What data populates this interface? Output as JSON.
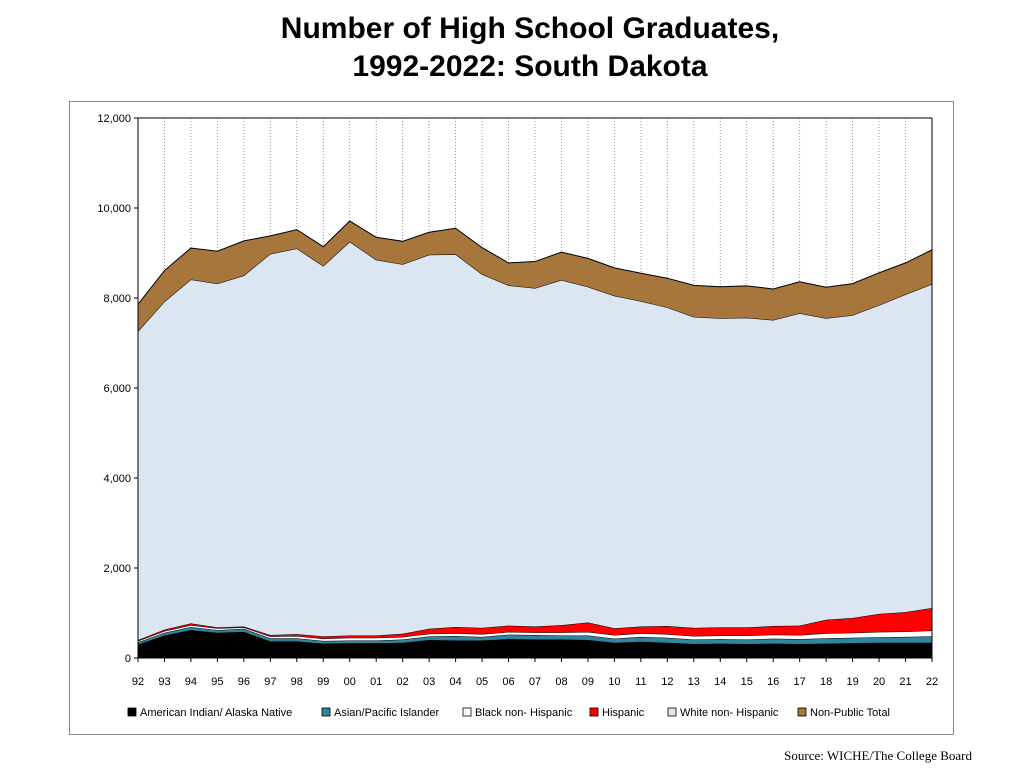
{
  "title_line1": "Number of High School Graduates,",
  "title_line2": "1992-2022:  South Dakota",
  "source": "Source: WICHE/The College Board",
  "chart_data": {
    "type": "area",
    "stacked": true,
    "title": "Number of High School Graduates, 1992-2022:  South Dakota",
    "xlabel": "",
    "ylabel": "",
    "ylim": [
      0,
      12000
    ],
    "yticks": [
      0,
      2000,
      4000,
      6000,
      8000,
      10000,
      12000
    ],
    "ytick_labels": [
      "0",
      "2,000",
      "4,000",
      "6,000",
      "8,000",
      "10,000",
      "12,000"
    ],
    "categories": [
      "92",
      "93",
      "94",
      "95",
      "96",
      "97",
      "98",
      "99",
      "00",
      "01",
      "02",
      "03",
      "04",
      "05",
      "06",
      "07",
      "08",
      "09",
      "10",
      "11",
      "12",
      "13",
      "14",
      "15",
      "16",
      "17",
      "18",
      "19",
      "20",
      "21",
      "22"
    ],
    "grid": "vertical dotted",
    "legend_position": "bottom",
    "series": [
      {
        "name": "American Indian/  Alaska Native",
        "color": "#000000",
        "values": [
          300,
          500,
          620,
          560,
          580,
          370,
          370,
          320,
          330,
          330,
          340,
          400,
          390,
          390,
          420,
          410,
          410,
          400,
          340,
          360,
          340,
          310,
          320,
          310,
          320,
          310,
          320,
          330,
          340,
          340,
          340
        ]
      },
      {
        "name": "Asian/Pacific Islander",
        "color": "#31849b",
        "values": [
          50,
          60,
          70,
          60,
          70,
          70,
          70,
          60,
          60,
          60,
          70,
          80,
          100,
          80,
          100,
          100,
          90,
          100,
          90,
          110,
          110,
          100,
          100,
          100,
          110,
          110,
          120,
          120,
          120,
          130,
          140
        ]
      },
      {
        "name": "Black non-  Hispanic",
        "color": "#ffffff",
        "values": [
          30,
          40,
          40,
          40,
          30,
          40,
          50,
          50,
          60,
          60,
          60,
          60,
          60,
          60,
          60,
          60,
          70,
          80,
          80,
          80,
          80,
          80,
          80,
          90,
          90,
          90,
          110,
          110,
          120,
          120,
          130
        ]
      },
      {
        "name": "Hispanic",
        "color": "#ff0000",
        "values": [
          20,
          30,
          40,
          20,
          20,
          30,
          40,
          50,
          50,
          50,
          70,
          110,
          140,
          140,
          140,
          130,
          160,
          210,
          150,
          150,
          180,
          180,
          180,
          180,
          190,
          210,
          300,
          330,
          400,
          430,
          500
        ]
      },
      {
        "name": "White non-  Hispanic",
        "color": "#dce6f2",
        "values": [
          6860,
          7290,
          7640,
          7640,
          7800,
          8470,
          8570,
          8230,
          8750,
          8350,
          8210,
          8310,
          8280,
          7860,
          7560,
          7520,
          7670,
          7460,
          7390,
          7230,
          7080,
          6910,
          6870,
          6880,
          6800,
          6940,
          6700,
          6730,
          6860,
          7060,
          7200
        ]
      },
      {
        "name": "Non-Public Total",
        "color": "#a6763c",
        "values": [
          600,
          690,
          700,
          720,
          770,
          400,
          420,
          430,
          460,
          500,
          510,
          500,
          580,
          590,
          500,
          590,
          620,
          630,
          620,
          620,
          650,
          700,
          700,
          710,
          690,
          700,
          690,
          700,
          720,
          700,
          760
        ]
      }
    ]
  }
}
